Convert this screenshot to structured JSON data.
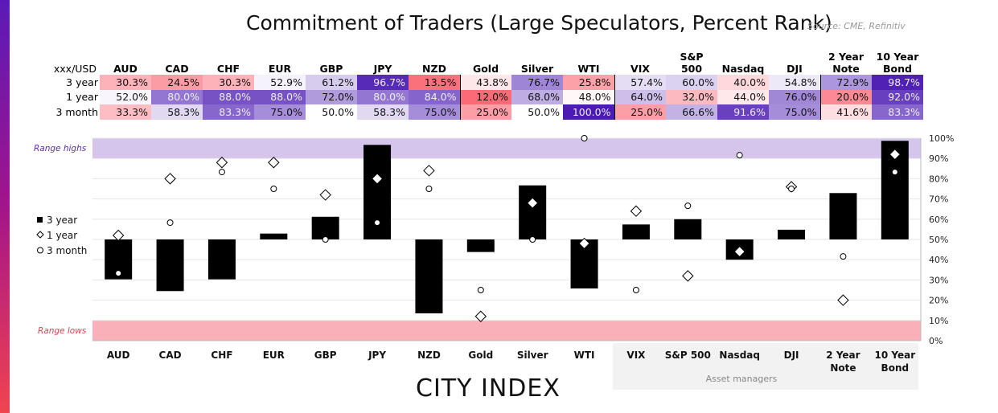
{
  "title": "Commitment of Traders (Large Speculators, Percent Rank)",
  "source": "Source: CME, Refinitiv",
  "logo": "CITY INDEX",
  "table": {
    "corner": "xxx/USD",
    "row_labels": [
      "3 year",
      "1 year",
      "3 month"
    ]
  },
  "colors": {
    "low": "#f83c4c",
    "mid": "#ffffff",
    "high": "#4b1bb2",
    "range_high_band": "#d5c5ec",
    "range_low_band": "#f9b0b8",
    "bar": "#000000"
  },
  "chart_data": {
    "type": "bar",
    "categories": [
      "AUD",
      "CAD",
      "CHF",
      "EUR",
      "GBP",
      "JPY",
      "NZD",
      "Gold",
      "Silver",
      "WTI",
      "VIX",
      "S&P 500",
      "Nasdaq",
      "DJI",
      "2 Year Note",
      "10 Year Bond"
    ],
    "series": [
      {
        "name": "3 year",
        "marker": "bar",
        "values": [
          30.3,
          24.5,
          30.3,
          52.9,
          61.2,
          96.7,
          13.5,
          43.8,
          76.7,
          25.8,
          57.4,
          60.0,
          40.0,
          54.8,
          72.9,
          98.7
        ]
      },
      {
        "name": "1 year",
        "marker": "diamond",
        "values": [
          52.0,
          80.0,
          88.0,
          88.0,
          72.0,
          80.0,
          84.0,
          12.0,
          68.0,
          48.0,
          64.0,
          32.0,
          44.0,
          76.0,
          20.0,
          92.0
        ]
      },
      {
        "name": "3 month",
        "marker": "circle",
        "values": [
          33.3,
          58.3,
          83.3,
          75.0,
          50.0,
          58.3,
          75.0,
          25.0,
          50.0,
          100.0,
          25.0,
          66.6,
          91.6,
          75.0,
          41.6,
          83.3
        ]
      }
    ],
    "bar_baseline": 50,
    "ylim": [
      0,
      100
    ],
    "yticks": [
      "0%",
      "10%",
      "20%",
      "30%",
      "40%",
      "50%",
      "60%",
      "70%",
      "80%",
      "90%",
      "100%"
    ],
    "annotations": {
      "range_highs": "Range highs",
      "range_lows": "Range lows",
      "group_label": "Asset managers"
    },
    "legend_placement": "left",
    "grid": true
  }
}
